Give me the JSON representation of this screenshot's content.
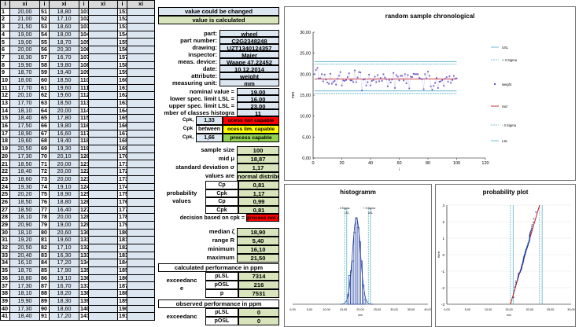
{
  "table": {
    "headers": [
      "i",
      "xi",
      "i",
      "xi",
      "i",
      "xi",
      "i",
      "xi"
    ],
    "rows": [
      [
        "1",
        "20,00",
        "51",
        "18,80",
        "101",
        "",
        "151",
        ""
      ],
      [
        "2",
        "21,00",
        "52",
        "17,10",
        "102",
        "",
        "152",
        ""
      ],
      [
        "3",
        "21,50",
        "53",
        "18,60",
        "103",
        "",
        "153",
        ""
      ],
      [
        "4",
        "19,00",
        "54",
        "18,00",
        "104",
        "",
        "154",
        ""
      ],
      [
        "5",
        "19,00",
        "55",
        "18,70",
        "105",
        "",
        "155",
        ""
      ],
      [
        "6",
        "20,00",
        "56",
        "20,30",
        "106",
        "",
        "156",
        ""
      ],
      [
        "7",
        "18,30",
        "57",
        "16,70",
        "107",
        "",
        "157",
        ""
      ],
      [
        "8",
        "19,90",
        "58",
        "19,80",
        "108",
        "",
        "158",
        ""
      ],
      [
        "9",
        "18,70",
        "59",
        "19,40",
        "109",
        "",
        "159",
        ""
      ],
      [
        "10",
        "18,00",
        "60",
        "18,50",
        "110",
        "",
        "160",
        ""
      ],
      [
        "11",
        "17,70",
        "61",
        "19,60",
        "111",
        "",
        "161",
        ""
      ],
      [
        "12",
        "20,10",
        "62",
        "19,60",
        "112",
        "",
        "162",
        ""
      ],
      [
        "13",
        "17,70",
        "63",
        "18,50",
        "113",
        "",
        "163",
        ""
      ],
      [
        "14",
        "18,10",
        "64",
        "20,00",
        "114",
        "",
        "164",
        ""
      ],
      [
        "15",
        "18,40",
        "65",
        "17,80",
        "115",
        "",
        "165",
        ""
      ],
      [
        "16",
        "17,50",
        "66",
        "19,80",
        "116",
        "",
        "166",
        ""
      ],
      [
        "17",
        "18,90",
        "67",
        "16,60",
        "117",
        "",
        "167",
        ""
      ],
      [
        "18",
        "19,60",
        "68",
        "19,40",
        "118",
        "",
        "168",
        ""
      ],
      [
        "19",
        "20,50",
        "69",
        "19,30",
        "119",
        "",
        "169",
        ""
      ],
      [
        "20",
        "17,30",
        "70",
        "20,10",
        "120",
        "",
        "170",
        ""
      ],
      [
        "21",
        "18,50",
        "71",
        "20,00",
        "121",
        "",
        "171",
        ""
      ],
      [
        "22",
        "18,40",
        "72",
        "20,00",
        "122",
        "",
        "172",
        ""
      ],
      [
        "23",
        "18,60",
        "73",
        "20,00",
        "123",
        "",
        "173",
        ""
      ],
      [
        "24",
        "19,30",
        "74",
        "19,10",
        "124",
        "",
        "174",
        ""
      ],
      [
        "25",
        "20,20",
        "75",
        "18,90",
        "125",
        "",
        "175",
        ""
      ],
      [
        "26",
        "18,50",
        "76",
        "18,80",
        "126",
        "",
        "176",
        ""
      ],
      [
        "27",
        "18,50",
        "77",
        "16,40",
        "127",
        "",
        "177",
        ""
      ],
      [
        "28",
        "18,10",
        "78",
        "20,00",
        "128",
        "",
        "178",
        ""
      ],
      [
        "29",
        "20,90",
        "79",
        "19,00",
        "129",
        "",
        "179",
        ""
      ],
      [
        "30",
        "18,10",
        "80",
        "20,60",
        "130",
        "",
        "180",
        ""
      ],
      [
        "31",
        "19,20",
        "81",
        "19,60",
        "131",
        "",
        "181",
        ""
      ],
      [
        "32",
        "20,50",
        "82",
        "17,10",
        "132",
        "",
        "182",
        ""
      ],
      [
        "33",
        "20,40",
        "83",
        "16,30",
        "133",
        "",
        "183",
        ""
      ],
      [
        "34",
        "16,10",
        "84",
        "17,20",
        "134",
        "",
        "184",
        ""
      ],
      [
        "35",
        "18,70",
        "85",
        "17,90",
        "135",
        "",
        "185",
        ""
      ],
      [
        "36",
        "18,80",
        "86",
        "19,10",
        "136",
        "",
        "186",
        ""
      ],
      [
        "37",
        "17,30",
        "87",
        "16,70",
        "137",
        "",
        "187",
        ""
      ],
      [
        "38",
        "18,10",
        "88",
        "18,20",
        "138",
        "",
        "188",
        ""
      ],
      [
        "39",
        "19,90",
        "89",
        "18,30",
        "139",
        "",
        "189",
        ""
      ],
      [
        "40",
        "17,30",
        "90",
        "18,60",
        "140",
        "",
        "190",
        ""
      ],
      [
        "41",
        "18,40",
        "91",
        "17,20",
        "141",
        "",
        "191",
        ""
      ]
    ]
  },
  "legend_bar": {
    "changeable": "value could be changed",
    "calculated": "value is calculated"
  },
  "info": [
    {
      "label": "part:",
      "value": "wheel"
    },
    {
      "label": "part number:",
      "value": "C2G2348248"
    },
    {
      "label": "drawing:",
      "value": "UZT1340124357"
    },
    {
      "label": "inspector:",
      "value": "Maier"
    },
    {
      "label": "meas. device:",
      "value": "Waage 47.22452"
    },
    {
      "label": "date:",
      "value": "10.12.2014"
    },
    {
      "label": "attribute:",
      "value": "weight"
    },
    {
      "label": "measuring unit:",
      "value": "mm"
    }
  ],
  "limits": [
    {
      "label": "nominal value =",
      "value": "19,00"
    },
    {
      "label": "lower spec. limit LSL =",
      "value": "16,00"
    },
    {
      "label": "upper spec. limit LSL =",
      "value": "23,00"
    },
    {
      "label": "mber of classes histogra",
      "value": "11"
    }
  ],
  "cpk": [
    {
      "sym": "Cpk,",
      "val": "1,33",
      "text": "ocess not capable"
    },
    {
      "sym": "Cpk",
      "val": "between",
      "text": "ocess lim. capable"
    },
    {
      "sym": "Cpk,",
      "val": "1,66",
      "text": "process capable"
    }
  ],
  "stats1": [
    {
      "label": "sample size",
      "value": "100"
    },
    {
      "label": "mid μ",
      "value": "18,87"
    },
    {
      "label": "standard deviation σ",
      "value": "1,17"
    },
    {
      "label": "values are",
      "value": "normal distributed"
    }
  ],
  "prob": {
    "label1": "probability",
    "label2": "values",
    "rows": [
      {
        "sym": "Cp",
        "val": "0,81"
      },
      {
        "sym": "Cpk",
        "val": "1,17"
      },
      {
        "sym": "Cp",
        "val": "0,99"
      },
      {
        "sym": "Cpk",
        "val": "0,81"
      }
    ]
  },
  "decision": {
    "label": "decision based on cpk =",
    "value": "process not capable"
  },
  "stats2": [
    {
      "label": "median ζ",
      "value": "18,90"
    },
    {
      "label": "range R",
      "value": "5,40"
    },
    {
      "label": "minimum",
      "value": "16,10"
    },
    {
      "label": "maximum",
      "value": "21,50"
    }
  ],
  "calc_ppm": {
    "title": "calculated performance in ppm",
    "label1": "exceedanc",
    "label2": "e",
    "rows": [
      {
        "sym": "pLSL",
        "val": "7314"
      },
      {
        "sym": "pOSL",
        "val": "216"
      },
      {
        "sym": "p",
        "val": "7531"
      }
    ]
  },
  "obs_ppm": {
    "title": "observed performance in ppm",
    "label1": "exceedanc",
    "rows": [
      {
        "sym": "pLSL",
        "val": "0"
      },
      {
        "sym": "pOSL",
        "val": "0"
      }
    ]
  },
  "colors": {
    "grid_header": "#d9d9d9",
    "editable": "#dce6f1",
    "calculated": "#d8e4bc",
    "alarm": "#ff0000",
    "series": "#4040c0",
    "mid": "#c00000"
  },
  "chart_data": [
    {
      "type": "scatter",
      "title": "random sample chronological",
      "ylabel": "mm",
      "xlim": [
        0,
        120
      ],
      "ylim": [
        0,
        30
      ],
      "xticks": [
        "0",
        "20",
        "40",
        "60",
        "80",
        "100",
        "120"
      ],
      "yticks": [
        "0,00",
        "5,00",
        "10,00",
        "15,00",
        "20,00",
        "25,00",
        "30,00"
      ],
      "x_label_small": "i",
      "series": [
        {
          "name": "weight",
          "values": [
            20.0,
            21.0,
            21.5,
            19.0,
            19.0,
            20.0,
            18.3,
            19.9,
            18.7,
            18.0,
            17.7,
            20.1,
            17.7,
            18.1,
            18.4,
            17.5,
            18.9,
            19.6,
            20.5,
            17.3,
            18.5,
            18.4,
            18.6,
            19.3,
            20.2,
            18.5,
            18.5,
            18.1,
            20.9,
            18.1,
            19.2,
            20.5,
            20.4,
            16.1,
            18.7,
            18.8,
            17.3,
            18.1,
            19.9,
            17.3,
            18.4,
            18.6,
            19.4,
            18.1,
            19.8,
            18.3,
            19.1,
            18.4,
            20.0,
            19.2,
            18.8,
            17.1,
            18.6,
            18.0,
            18.7,
            20.3,
            16.7,
            19.8,
            19.4,
            18.5,
            19.6,
            19.6,
            18.5,
            20.0,
            17.8,
            19.8,
            16.6,
            19.4,
            19.3,
            20.1,
            20.0,
            20.0,
            20.0,
            19.1,
            18.9,
            18.8,
            16.4,
            20.0,
            19.0,
            20.6,
            19.6,
            17.1,
            16.3,
            17.2,
            17.9,
            19.1,
            16.7,
            18.2,
            18.3,
            18.6,
            17.2,
            18.9,
            19.3,
            18.2,
            19.5,
            17.9,
            18.6,
            19.6,
            18.9,
            19.0
          ]
        }
      ],
      "lines": {
        "usl": 23.0,
        "lsl": 16.0,
        "mid": 18.87,
        "plus3s": 22.38,
        "minus3s": 15.36
      },
      "legend": [
        "USL",
        "+ 3 Sigma",
        "weight",
        "mid",
        "- 3 Sigma",
        "LSL"
      ]
    },
    {
      "type": "bar",
      "title": "histogramm",
      "xticks": [
        "0,00",
        "5,00",
        "10,00",
        "15,00",
        "20,00",
        "25,00",
        "30,00",
        "35,00",
        "40,00"
      ],
      "xlim": [
        0,
        40
      ],
      "annotations": [
        "- 3 Sigma",
        "+ 3 Sigma",
        "LSL",
        "USL"
      ],
      "categories": [
        "16,1",
        "16,6",
        "17,1",
        "17,6",
        "18,1",
        "18,6",
        "19,1",
        "19,6",
        "20,1",
        "20,6",
        "21,1"
      ],
      "values": [
        2,
        6,
        7,
        9,
        15,
        18,
        16,
        13,
        9,
        4,
        1
      ],
      "x_label_small": "mm"
    },
    {
      "type": "line",
      "title": "probability plot",
      "ylabel": "Wert",
      "xlim": [
        0,
        30
      ],
      "ylim": [
        -3,
        3
      ],
      "xticks": [
        "0,00",
        "5,00",
        "10,00",
        "15,00",
        "20,00",
        "25,00",
        "30,00"
      ],
      "yticks": [
        "-3",
        "-2",
        "-1",
        "0",
        "1",
        "2",
        "3"
      ],
      "x_label_small": "mm"
    }
  ]
}
